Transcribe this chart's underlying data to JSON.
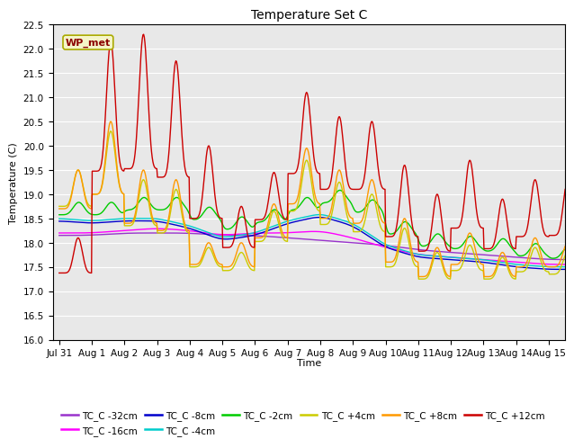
{
  "title": "Temperature Set C",
  "xlabel": "Time",
  "ylabel": "Temperature (C)",
  "ylim": [
    16.0,
    22.5
  ],
  "xlim": [
    -0.2,
    15.5
  ],
  "xtick_labels": [
    "Jul 31",
    "Aug 1",
    "Aug 2",
    "Aug 3",
    "Aug 4",
    "Aug 5",
    "Aug 6",
    "Aug 7",
    "Aug 8",
    "Aug 9",
    "Aug 10",
    "Aug 11",
    "Aug 12",
    "Aug 13",
    "Aug 14",
    "Aug 15"
  ],
  "xtick_positions": [
    0,
    1,
    2,
    3,
    4,
    5,
    6,
    7,
    8,
    9,
    10,
    11,
    12,
    13,
    14,
    15
  ],
  "bg_color": "#e8e8e8",
  "fig_color": "#ffffff",
  "wp_met_label": "WP_met",
  "wp_met_color": "#8B0000",
  "wp_met_bg": "#f5f5c8",
  "legend_entries": [
    "TC_C -32cm",
    "TC_C -16cm",
    "TC_C -8cm",
    "TC_C -4cm",
    "TC_C -2cm",
    "TC_C +4cm",
    "TC_C +8cm",
    "TC_C +12cm"
  ],
  "line_colors": [
    "#9933cc",
    "#ff00ff",
    "#0000cc",
    "#00cccc",
    "#00cc00",
    "#cccc00",
    "#ff9900",
    "#cc0000"
  ],
  "linewidth": 1.0
}
